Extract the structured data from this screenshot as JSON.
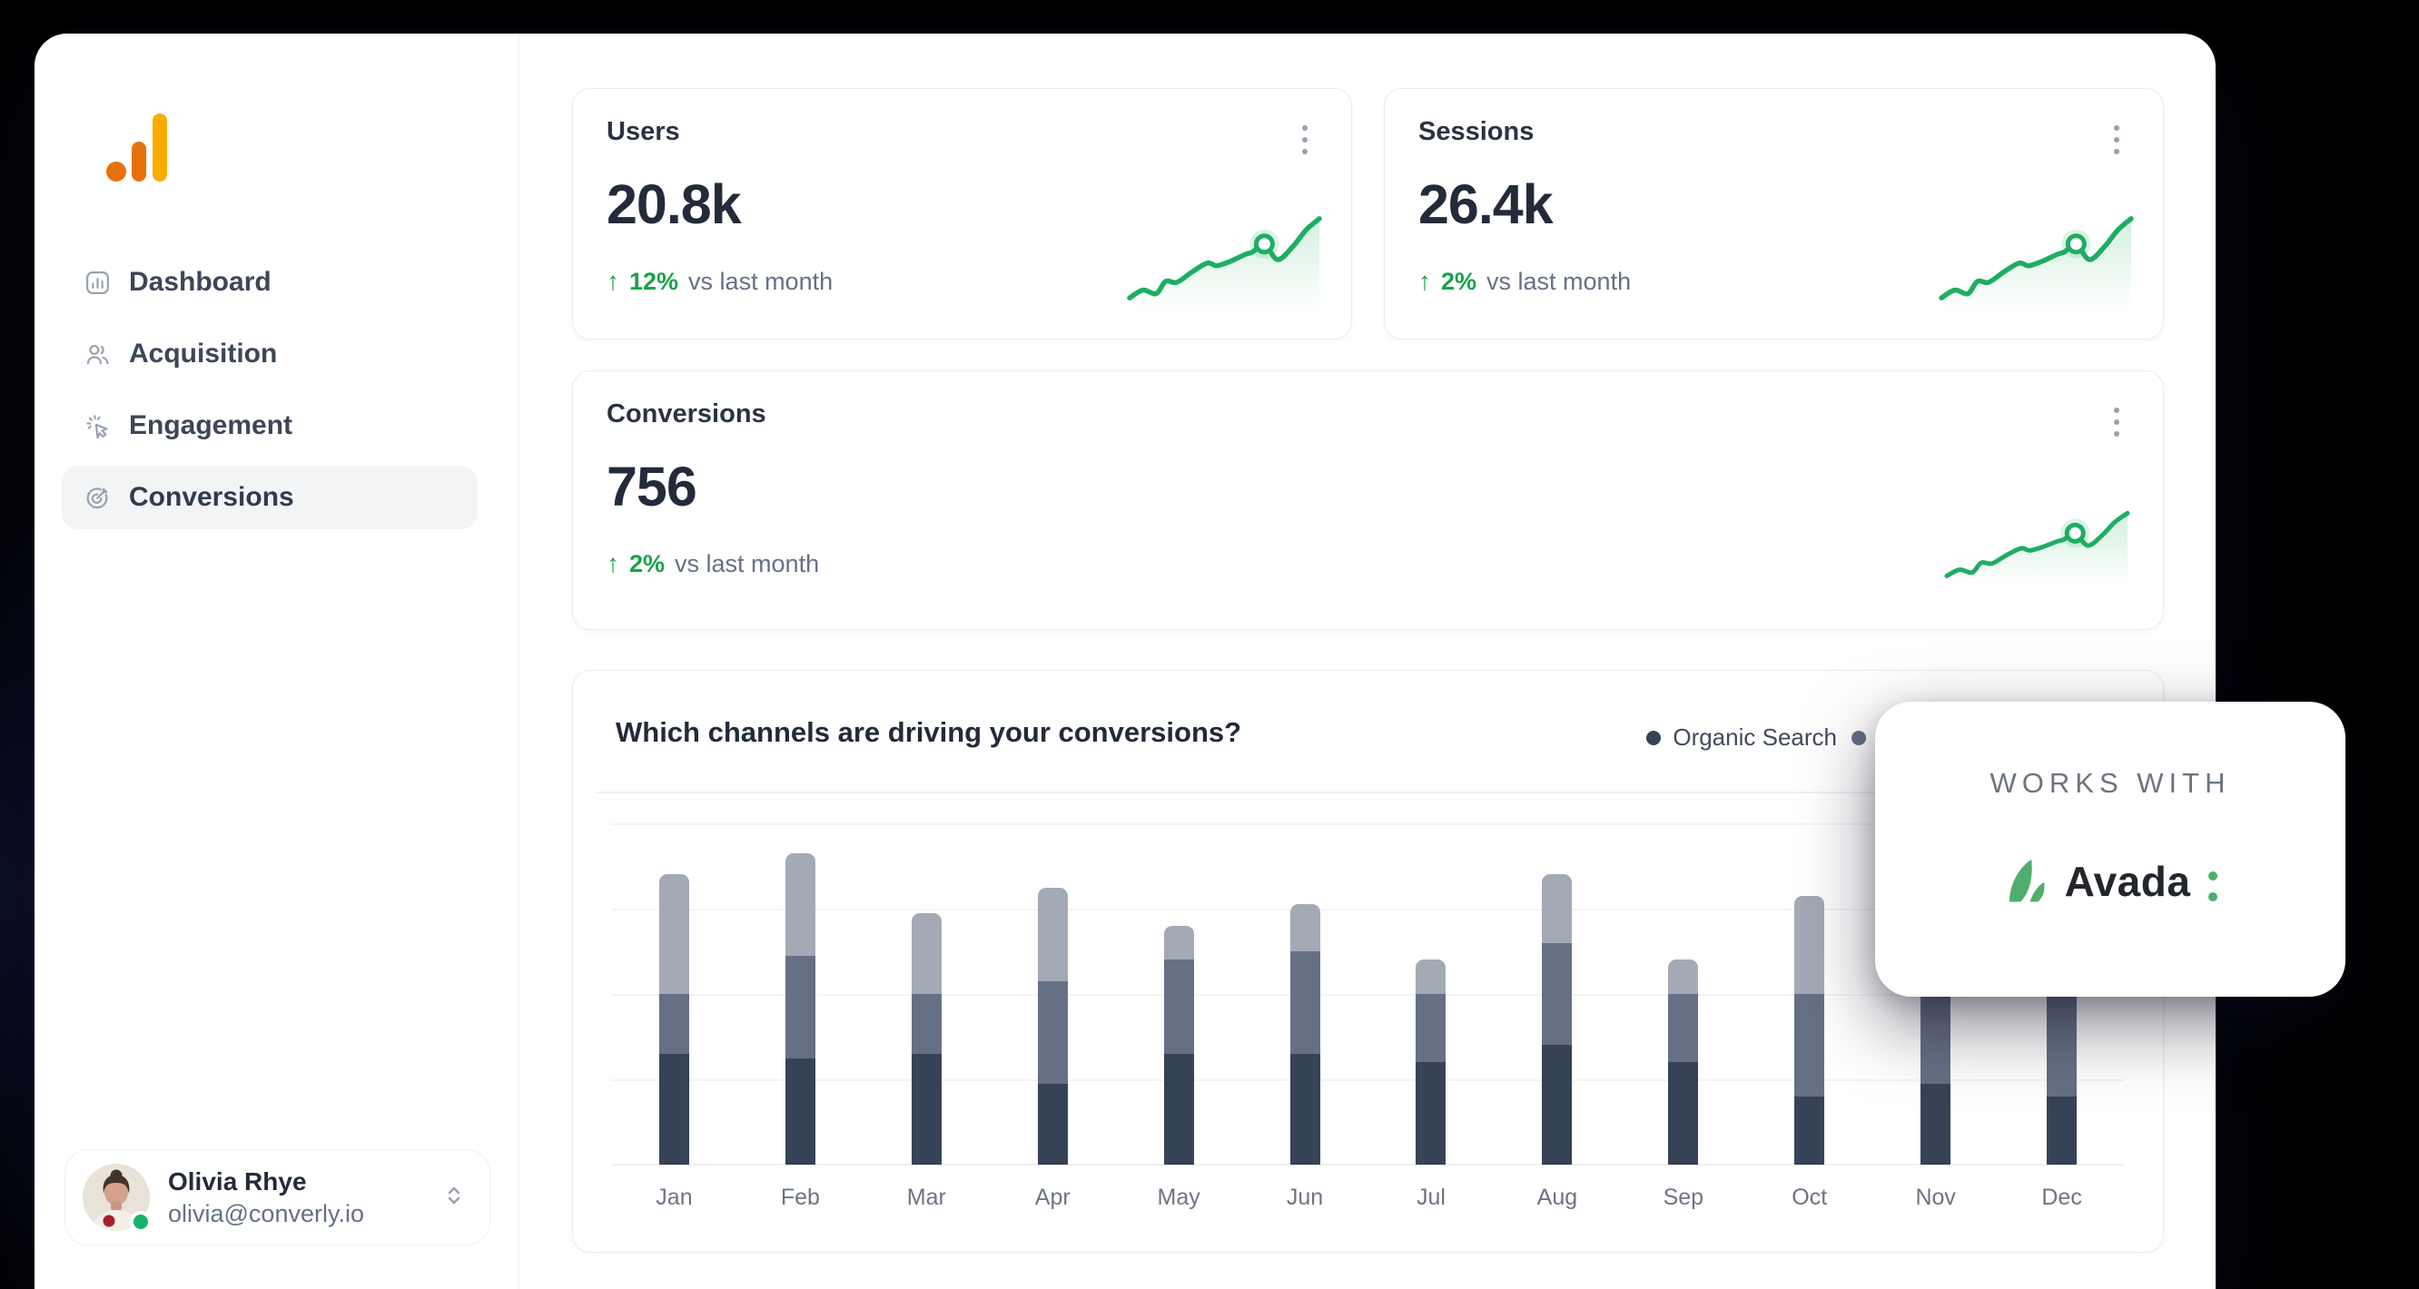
{
  "sidebar": {
    "nav": [
      {
        "label": "Dashboard",
        "icon": "bar-chart-icon",
        "active": false
      },
      {
        "label": "Acquisition",
        "icon": "users-icon",
        "active": false
      },
      {
        "label": "Engagement",
        "icon": "cursor-click-icon",
        "active": false
      },
      {
        "label": "Conversions",
        "icon": "goal-icon",
        "active": true
      }
    ],
    "profile": {
      "name": "Olivia Rhye",
      "email": "olivia@converly.io",
      "status": "online"
    }
  },
  "icons": {
    "trend_up": "↑"
  },
  "stat_cards": [
    {
      "title": "Users",
      "value": "20.8k",
      "delta": "12%",
      "delta_direction": "up",
      "compare_label": "vs last month"
    },
    {
      "title": "Sessions",
      "value": "26.4k",
      "delta": "2%",
      "delta_direction": "up",
      "compare_label": "vs last month"
    },
    {
      "title": "Conversions",
      "value": "756",
      "delta": "2%",
      "delta_direction": "up",
      "compare_label": "vs last month"
    }
  ],
  "sparkline": {
    "points": [
      [
        0,
        94
      ],
      [
        7,
        85
      ],
      [
        14,
        89
      ],
      [
        19,
        75
      ],
      [
        25,
        76
      ],
      [
        33,
        64
      ],
      [
        41,
        54
      ],
      [
        46,
        57
      ],
      [
        53,
        52
      ],
      [
        61,
        44
      ],
      [
        65,
        41
      ],
      [
        71,
        32
      ],
      [
        78,
        50
      ],
      [
        86,
        35
      ],
      [
        93,
        16
      ],
      [
        100,
        3
      ]
    ],
    "marker_index": 11
  },
  "conversions_chart": {
    "title": "Which channels are driving your conversions?",
    "legend": [
      {
        "label": "Organic Search",
        "color": "#364357"
      },
      {
        "label": "",
        "color": "#667084"
      }
    ]
  },
  "chart_data": {
    "type": "bar",
    "stacked": true,
    "title": "Which channels are driving your conversions?",
    "categories": [
      "Jan",
      "Feb",
      "Mar",
      "Apr",
      "May",
      "Jun",
      "Jul",
      "Aug",
      "Sep",
      "Oct",
      "Nov",
      "Dec"
    ],
    "series": [
      {
        "name": "Organic Search",
        "color": "#364357",
        "values": [
          130,
          125,
          130,
          95,
          130,
          130,
          120,
          140,
          120,
          80,
          95,
          80
        ]
      },
      {
        "name": "",
        "color": "#667084",
        "values": [
          70,
          120,
          70,
          120,
          110,
          120,
          80,
          120,
          80,
          120,
          115,
          120
        ]
      },
      {
        "name": "",
        "color": "#a3a9b5",
        "values": [
          140,
          120,
          95,
          110,
          40,
          55,
          40,
          80,
          40,
          115,
          40,
          40
        ]
      }
    ],
    "ylim": [
      0,
      400
    ],
    "grid": "horizontal, unlabeled ticks",
    "legend_position": "top-right"
  },
  "promo": {
    "eyebrow": "WORKS WITH",
    "brand": "Avada"
  },
  "colors": {
    "accent_green": "#16a34a",
    "sparkline_green": "#1dae62",
    "sparkline_fill": "rgba(34,178,95,0.20)",
    "logo_orange": "#e8710a",
    "logo_amber": "#f9ab00",
    "avada_green": "#4fae6d",
    "bar_dark": "#364357",
    "bar_mid": "#667084",
    "bar_light": "#a3a9b5",
    "status_green": "#17b26a"
  }
}
